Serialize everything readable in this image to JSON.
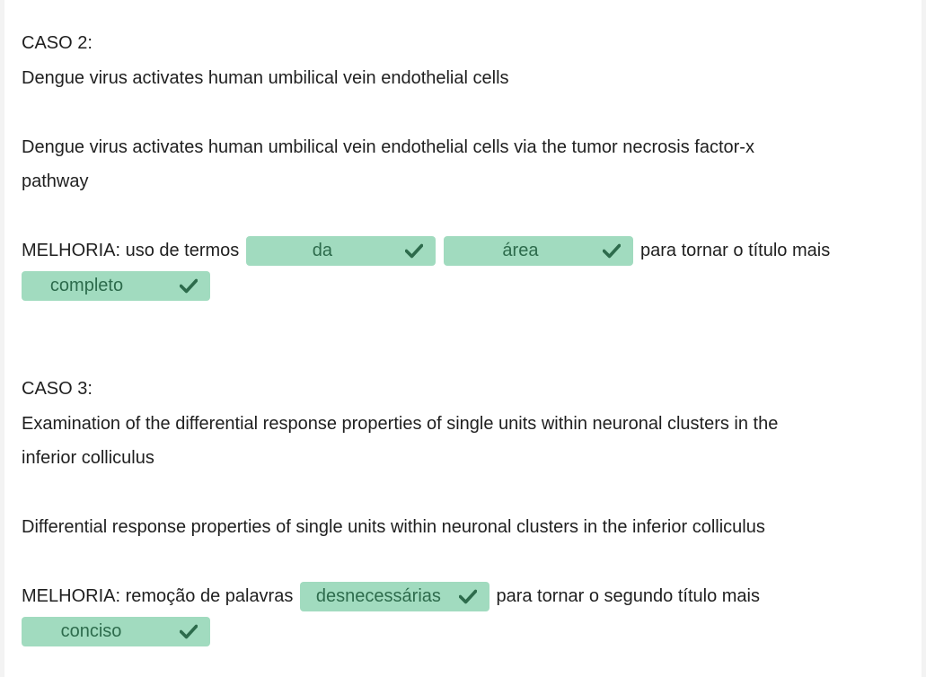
{
  "case2": {
    "heading": "CASO 2:",
    "original_title": "Dengue virus activates human umbilical vein endothelial cells",
    "improved_title_line1": "Dengue virus activates human umbilical vein endothelial cells via the tumor necrosis factor-x",
    "improved_title_line2": "pathway",
    "improvement_prefix": "MELHORIA: uso de termos",
    "improvement_middle": "para tornar o título mais",
    "answers": [
      "da",
      "área",
      "completo"
    ]
  },
  "case3": {
    "heading": "CASO 3:",
    "original_title_line1": "Examination of the differential response properties of single units within neuronal clusters in the",
    "original_title_line2": "inferior colliculus",
    "improved_title": "Differential response properties of single units within neuronal clusters in the inferior colliculus",
    "improvement_prefix": "MELHORIA: remoção de palavras",
    "improvement_middle": "para tornar o segundo título mais",
    "answers": [
      "desnecessárias",
      "conciso"
    ]
  },
  "colors": {
    "chip_background": "#a1dbbf",
    "chip_text": "#2d6b4c",
    "check_icon": "#2d6b4c"
  },
  "icons": {
    "check": "check-icon"
  }
}
